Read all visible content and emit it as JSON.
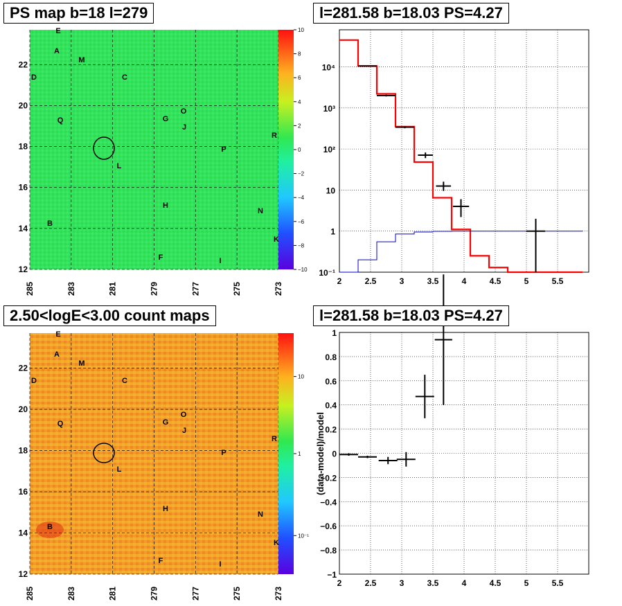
{
  "panels": [
    {
      "id": "ps_map",
      "title": "PS map b=18 l=279",
      "type": "heatmap",
      "x_ticks": [
        "285",
        "283",
        "281",
        "279",
        "277",
        "275",
        "273"
      ],
      "y_ticks": [
        "12",
        "14",
        "16",
        "18",
        "20",
        "22"
      ],
      "colorbar_ticks": [
        "10",
        "8",
        "6",
        "4",
        "2",
        "0",
        "−2",
        "−4",
        "−6",
        "−8",
        "−10"
      ],
      "background_color": "#33e35a"
    },
    {
      "id": "count_map",
      "title": "2.50<logE<3.00 count maps",
      "type": "heatmap",
      "x_ticks": [
        "285",
        "283",
        "281",
        "279",
        "277",
        "275",
        "273"
      ],
      "y_ticks": [
        "12",
        "14",
        "16",
        "18",
        "20",
        "22"
      ],
      "colorbar_ticks": [
        "10",
        "1",
        "10⁻¹"
      ],
      "background_color": "#f29a2a"
    },
    {
      "id": "spectrum",
      "title": "l=281.58 b=18.03 PS=4.27",
      "x_ticks": [
        "2",
        "2.5",
        "3",
        "3.5",
        "4",
        "4.5",
        "5",
        "5.5"
      ],
      "y_ticks": [
        "10⁻¹",
        "1",
        "10",
        "10²",
        "10³",
        "10⁴"
      ]
    },
    {
      "id": "residual",
      "title": "l=281.58 b=18.03 PS=4.27",
      "ylabel": "(data-model)/model",
      "x_ticks": [
        "2",
        "2.5",
        "3",
        "3.5",
        "4",
        "4.5",
        "5",
        "5.5"
      ],
      "y_ticks": [
        "1",
        "0.8",
        "0.6",
        "0.4",
        "0.2",
        "0",
        "−0.2",
        "−0.4",
        "−0.6",
        "−0.8",
        "−1"
      ]
    }
  ],
  "map_labels": [
    "E",
    "A",
    "M",
    "D",
    "C",
    "O",
    "G",
    "J",
    "Q",
    "R",
    "P",
    "L",
    "H",
    "N",
    "B",
    "K",
    "F",
    "I"
  ],
  "chart_data": [
    {
      "type": "heatmap",
      "title": "PS map b=18 l=279",
      "xlim": [
        285,
        273
      ],
      "ylim": [
        12,
        23.7
      ],
      "colorbar_range": [
        -10,
        10
      ],
      "source_circle": {
        "l": 281.58,
        "b": 18.03
      }
    },
    {
      "type": "heatmap",
      "title": "2.50<logE<3.00 count maps",
      "xlim": [
        285,
        273
      ],
      "ylim": [
        12,
        23.7
      ],
      "colorbar_scale": "log",
      "source_circle": {
        "l": 281.58,
        "b": 18.03
      }
    },
    {
      "type": "line",
      "title": "l=281.58 b=18.03 PS=4.27",
      "xlim": [
        2,
        6
      ],
      "ylim": [
        0.1,
        80000
      ],
      "yscale": "log",
      "grid": true,
      "series": [
        {
          "style": "step-red",
          "edges": [
            2.0,
            2.3,
            2.6,
            2.9,
            3.2,
            3.5,
            3.8,
            4.1,
            4.4,
            4.7,
            5.0,
            5.3,
            5.6,
            5.9
          ],
          "values": [
            45000,
            10500,
            2200,
            350,
            48,
            6.5,
            1.1,
            0.25,
            0.13,
            0.1,
            0.1,
            0.1,
            0.1
          ]
        },
        {
          "style": "step-blue",
          "edges": [
            2.0,
            2.3,
            2.6,
            2.9,
            3.2,
            3.5,
            3.8,
            4.1,
            4.4,
            4.7,
            5.0,
            5.3,
            5.6,
            5.9
          ],
          "values": [
            0.1,
            0.2,
            0.55,
            0.85,
            0.95,
            0.99,
            1.0,
            1.0,
            1.0,
            1.0,
            1.0,
            1.0,
            1.0
          ]
        },
        {
          "style": "points",
          "points": [
            {
              "x": 2.45,
              "y": 10500,
              "xerr": 0.15,
              "ylo": 10200,
              "yhi": 10800
            },
            {
              "x": 2.75,
              "y": 2000,
              "xerr": 0.15,
              "ylo": 1900,
              "yhi": 2100
            },
            {
              "x": 3.05,
              "y": 340,
              "xerr": 0.15,
              "ylo": 320,
              "yhi": 360
            },
            {
              "x": 3.38,
              "y": 71,
              "xerr": 0.12,
              "ylo": 60,
              "yhi": 82
            },
            {
              "x": 3.67,
              "y": 12.5,
              "xerr": 0.12,
              "ylo": 9.5,
              "yhi": 16
            },
            {
              "x": 3.95,
              "y": 4.0,
              "xerr": 0.13,
              "ylo": 2.2,
              "yhi": 6.0
            },
            {
              "x": 5.15,
              "y": 1.0,
              "xerr": 0.15,
              "ylo": 0.1,
              "yhi": 2.0
            }
          ]
        }
      ]
    },
    {
      "type": "scatter",
      "title": "l=281.58 b=18.03 PS=4.27",
      "ylabel": "(data-model)/model",
      "xlim": [
        2,
        6
      ],
      "ylim": [
        -1,
        1
      ],
      "grid": true,
      "points": [
        {
          "x": 2.15,
          "y": -0.01,
          "xerr": 0.15,
          "yerr": 0.01
        },
        {
          "x": 2.45,
          "y": -0.03,
          "xerr": 0.15,
          "yerr": 0.01
        },
        {
          "x": 2.78,
          "y": -0.06,
          "xerr": 0.15,
          "yerr": 0.03
        },
        {
          "x": 3.07,
          "y": -0.05,
          "xerr": 0.15,
          "yerr": 0.06
        },
        {
          "x": 3.37,
          "y": 0.47,
          "xerr": 0.15,
          "yerr": 0.18
        },
        {
          "x": 3.67,
          "y": 0.94,
          "xerr": 0.14,
          "yerr": 0.54
        }
      ]
    }
  ]
}
